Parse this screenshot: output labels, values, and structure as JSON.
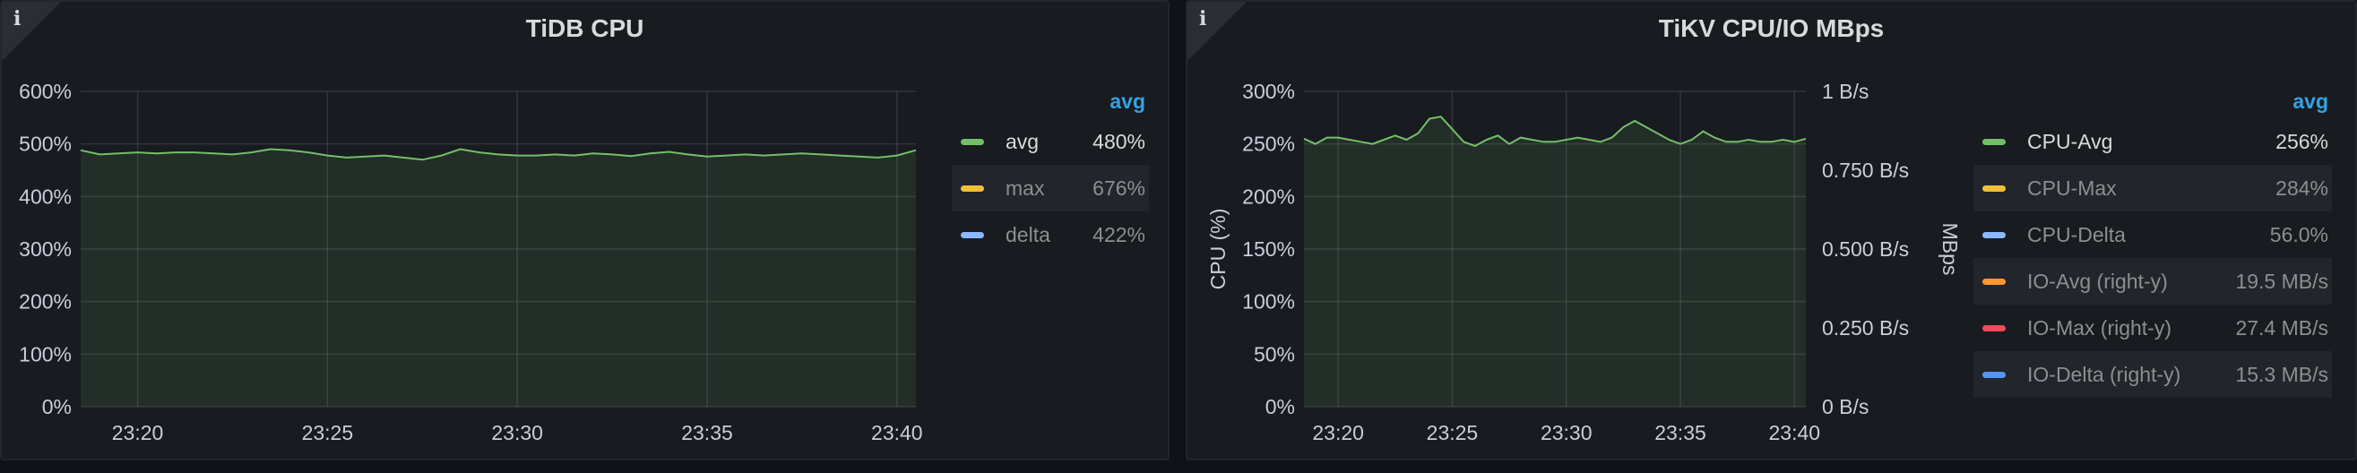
{
  "chart_data": [
    {
      "type": "line",
      "title": "TiDB CPU",
      "ylim": [
        0,
        600
      ],
      "y_unit": "%",
      "y_ticks": [
        "0%",
        "100%",
        "200%",
        "300%",
        "400%",
        "500%",
        "600%"
      ],
      "x_ticks": [
        "23:20",
        "23:25",
        "23:30",
        "23:35",
        "23:40"
      ],
      "x_range": [
        "23:18:30",
        "23:40:30"
      ],
      "grid": true,
      "legend_placement": "right",
      "legend_header": "avg",
      "series": [
        {
          "name": "avg",
          "color": "#73bf69",
          "legend_value": "480%",
          "x": [
            "23:18:30",
            "23:19:00",
            "23:19:30",
            "23:20:00",
            "23:20:30",
            "23:21:00",
            "23:21:30",
            "23:22:00",
            "23:22:30",
            "23:23:00",
            "23:23:30",
            "23:24:00",
            "23:24:30",
            "23:25:00",
            "23:25:30",
            "23:26:00",
            "23:26:30",
            "23:27:00",
            "23:27:30",
            "23:28:00",
            "23:28:30",
            "23:29:00",
            "23:29:30",
            "23:30:00",
            "23:30:30",
            "23:31:00",
            "23:31:30",
            "23:32:00",
            "23:32:30",
            "23:33:00",
            "23:33:30",
            "23:34:00",
            "23:34:30",
            "23:35:00",
            "23:35:30",
            "23:36:00",
            "23:36:30",
            "23:37:00",
            "23:37:30",
            "23:38:00",
            "23:38:30",
            "23:39:00",
            "23:39:30",
            "23:40:00",
            "23:40:30"
          ],
          "values": [
            488,
            480,
            482,
            484,
            482,
            484,
            484,
            482,
            480,
            484,
            490,
            488,
            484,
            478,
            474,
            476,
            478,
            474,
            470,
            478,
            490,
            484,
            480,
            478,
            478,
            480,
            478,
            482,
            480,
            477,
            482,
            485,
            480,
            476,
            478,
            480,
            478,
            480,
            482,
            480,
            478,
            476,
            474,
            478,
            488
          ]
        },
        {
          "name": "max",
          "color": "#f2c037",
          "legend_value": "676%"
        },
        {
          "name": "delta",
          "color": "#8ab8ff",
          "legend_value": "422%"
        }
      ]
    },
    {
      "type": "line",
      "title": "TiKV CPU/IO MBps",
      "ylabel": "CPU (%)",
      "ylabel_right": "MBps",
      "ylim": [
        0,
        300
      ],
      "y_ticks": [
        "0%",
        "50%",
        "100%",
        "150%",
        "200%",
        "250%",
        "300%"
      ],
      "y_right_ticks": [
        "0 B/s",
        "0.250 B/s",
        "0.500 B/s",
        "0.750 B/s",
        "1 B/s"
      ],
      "x_ticks": [
        "23:20",
        "23:25",
        "23:30",
        "23:35",
        "23:40"
      ],
      "x_range": [
        "23:18:30",
        "23:40:30"
      ],
      "grid": true,
      "legend_placement": "right",
      "legend_header": "avg",
      "series": [
        {
          "name": "CPU-Avg",
          "color": "#73bf69",
          "legend_value": "256%",
          "x": [
            "23:18:30",
            "23:19:00",
            "23:19:30",
            "23:20:00",
            "23:20:30",
            "23:21:00",
            "23:21:30",
            "23:22:00",
            "23:22:30",
            "23:23:00",
            "23:23:30",
            "23:24:00",
            "23:24:30",
            "23:25:00",
            "23:25:30",
            "23:26:00",
            "23:26:30",
            "23:27:00",
            "23:27:30",
            "23:28:00",
            "23:28:30",
            "23:29:00",
            "23:29:30",
            "23:30:00",
            "23:30:30",
            "23:31:00",
            "23:31:30",
            "23:32:00",
            "23:32:30",
            "23:33:00",
            "23:33:30",
            "23:34:00",
            "23:34:30",
            "23:35:00",
            "23:35:30",
            "23:36:00",
            "23:36:30",
            "23:37:00",
            "23:37:30",
            "23:38:00",
            "23:38:30",
            "23:39:00",
            "23:39:30",
            "23:40:00",
            "23:40:30"
          ],
          "values": [
            255,
            250,
            256,
            256,
            254,
            252,
            250,
            254,
            258,
            254,
            260,
            274,
            276,
            264,
            252,
            248,
            254,
            258,
            250,
            256,
            254,
            252,
            252,
            254,
            256,
            254,
            252,
            256,
            266,
            272,
            266,
            260,
            254,
            250,
            254,
            262,
            256,
            252,
            252,
            254,
            252,
            252,
            254,
            252,
            255
          ]
        },
        {
          "name": "CPU-Max",
          "color": "#f2c037",
          "legend_value": "284%"
        },
        {
          "name": "CPU-Delta",
          "color": "#8ab8ff",
          "legend_value": "56.0%"
        },
        {
          "name": "IO-Avg  (right-y)",
          "color": "#ff9830",
          "legend_value": "19.5 MB/s"
        },
        {
          "name": "IO-Max  (right-y)",
          "color": "#f2495c",
          "legend_value": "27.4 MB/s"
        },
        {
          "name": "IO-Delta  (right-y)",
          "color": "#5794f2",
          "legend_value": "15.3 MB/s"
        }
      ]
    }
  ]
}
